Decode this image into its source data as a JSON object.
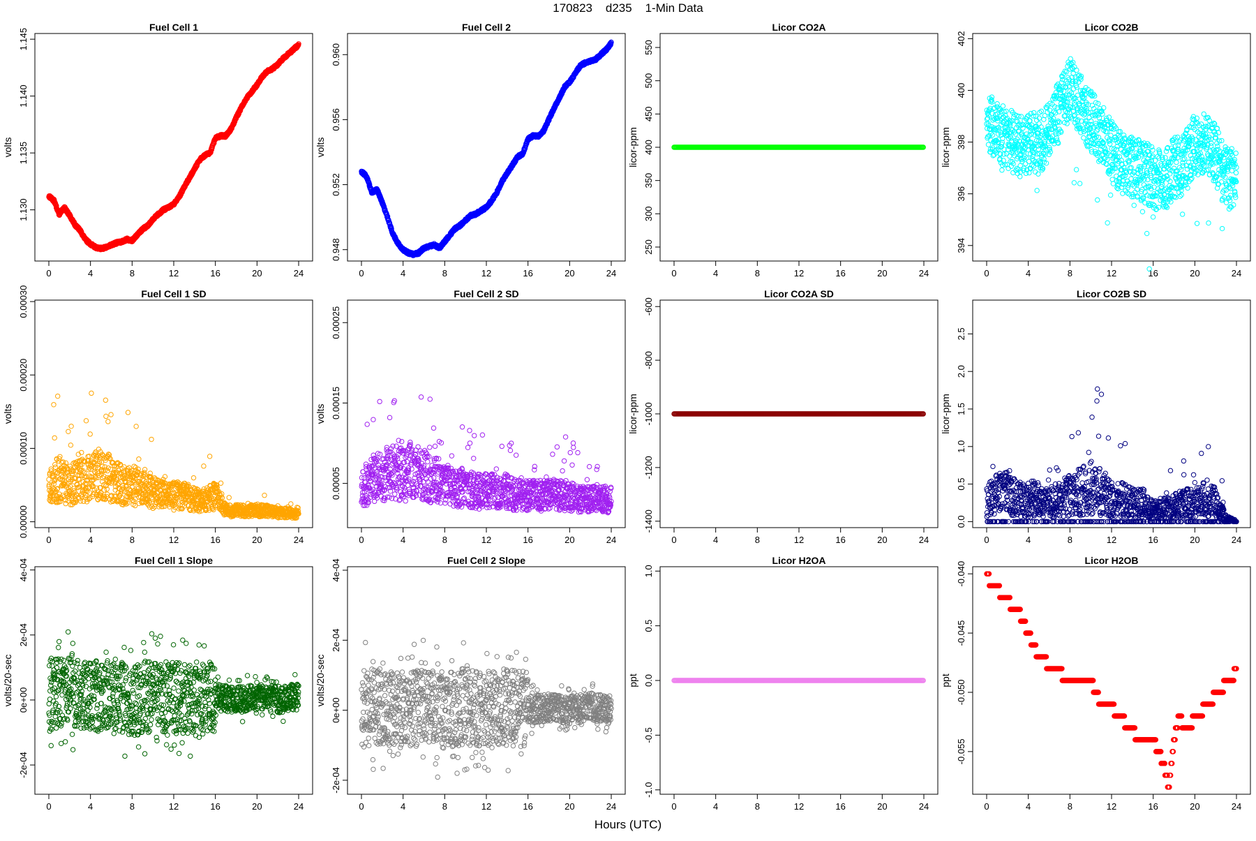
{
  "page": {
    "title": "170823    d235    1-Min Data",
    "xlabel": "Hours (UTC)"
  },
  "chart_data": [
    {
      "type": "scatter",
      "title": "Fuel Cell 1",
      "ylabel": "volts",
      "xlabel": "Hours (UTC)",
      "color": "#ff0000",
      "xlim": [
        0,
        24
      ],
      "ylim": [
        1.1255,
        1.1455
      ],
      "yticks": [
        "1.130",
        "1.135",
        "1.140",
        "1.145"
      ],
      "ytick_values": [
        1.13,
        1.135,
        1.14,
        1.145
      ],
      "xticks": [
        "0",
        "4",
        "8",
        "12",
        "16",
        "20",
        "24"
      ],
      "series": [
        {
          "x": [
            0,
            0.5,
            1,
            1.5,
            2,
            2.5,
            3,
            3.5,
            4,
            4.5,
            5,
            5.5,
            6,
            6.5,
            7,
            7.5,
            8,
            8.5,
            9,
            9.5,
            10,
            10.5,
            11,
            11.5,
            12,
            12.5,
            13,
            13.5,
            14,
            14.5,
            15,
            15.5,
            16,
            16.5,
            17,
            17.5,
            18,
            18.5,
            19,
            19.5,
            20,
            20.5,
            21,
            21.5,
            22,
            22.5,
            23,
            23.5,
            24
          ],
          "y": [
            1.1312,
            1.1308,
            1.1296,
            1.1302,
            1.1295,
            1.1287,
            1.1282,
            1.1274,
            1.127,
            1.1267,
            1.1266,
            1.1267,
            1.1269,
            1.1271,
            1.1272,
            1.1274,
            1.1273,
            1.1278,
            1.1283,
            1.1286,
            1.1292,
            1.1296,
            1.13,
            1.1302,
            1.1305,
            1.1311,
            1.132,
            1.1328,
            1.1336,
            1.1344,
            1.1348,
            1.135,
            1.1363,
            1.1365,
            1.1365,
            1.1371,
            1.1381,
            1.139,
            1.1398,
            1.1404,
            1.141,
            1.1417,
            1.1422,
            1.1424,
            1.1428,
            1.1433,
            1.1437,
            1.1441,
            1.1445
          ]
        }
      ]
    },
    {
      "type": "scatter",
      "title": "Fuel Cell 2",
      "ylabel": "volts",
      "xlabel": "Hours (UTC)",
      "color": "#0000ff",
      "xlim": [
        0,
        24
      ],
      "ylim": [
        0.9473,
        0.9613
      ],
      "yticks": [
        "0.948",
        "0.952",
        "0.956",
        "0.960"
      ],
      "ytick_values": [
        0.948,
        0.952,
        0.956,
        0.96
      ],
      "xticks": [
        "0",
        "4",
        "8",
        "12",
        "16",
        "20",
        "24"
      ],
      "series": [
        {
          "x": [
            0,
            0.5,
            1,
            1.5,
            2,
            2.5,
            3,
            3.5,
            4,
            4.5,
            5,
            5.5,
            6,
            6.5,
            7,
            7.5,
            8,
            8.5,
            9,
            9.5,
            10,
            10.5,
            11,
            11.5,
            12,
            12.5,
            13,
            13.5,
            14,
            14.5,
            15,
            15.5,
            16,
            16.5,
            17,
            17.5,
            18,
            18.5,
            19,
            19.5,
            20,
            20.5,
            21,
            21.5,
            22,
            22.5,
            23,
            23.5,
            24
          ],
          "y": [
            0.9528,
            0.9525,
            0.9515,
            0.9517,
            0.9509,
            0.95,
            0.949,
            0.9484,
            0.948,
            0.9478,
            0.9477,
            0.9478,
            0.9481,
            0.9482,
            0.9483,
            0.9481,
            0.9485,
            0.9489,
            0.9493,
            0.9495,
            0.9498,
            0.9501,
            0.9502,
            0.9504,
            0.9506,
            0.951,
            0.9515,
            0.9522,
            0.9527,
            0.9532,
            0.9537,
            0.9539,
            0.9548,
            0.955,
            0.955,
            0.9553,
            0.956,
            0.9567,
            0.9573,
            0.958,
            0.9583,
            0.9588,
            0.9593,
            0.9595,
            0.9596,
            0.9597,
            0.96,
            0.9603,
            0.9607
          ]
        }
      ]
    },
    {
      "type": "scatter",
      "title": "Licor CO2A",
      "ylabel": "licor-ppm",
      "xlabel": "Hours (UTC)",
      "color": "#00ff00",
      "xlim": [
        0,
        24
      ],
      "ylim": [
        229,
        571
      ],
      "yticks": [
        "250",
        "300",
        "350",
        "400",
        "450",
        "500",
        "550"
      ],
      "ytick_values": [
        250,
        300,
        350,
        400,
        450,
        500,
        550
      ],
      "xticks": [
        "0",
        "4",
        "8",
        "12",
        "16",
        "20",
        "24"
      ],
      "series": [
        {
          "x": [
            0,
            24
          ],
          "y": [
            400,
            400
          ]
        }
      ]
    },
    {
      "type": "scatter",
      "title": "Licor CO2B",
      "ylabel": "licor-ppm",
      "xlabel": "Hours (UTC)",
      "color": "#00ffff",
      "xlim": [
        0,
        24
      ],
      "ylim": [
        393.4,
        402.2
      ],
      "yticks": [
        "394",
        "396",
        "398",
        "400",
        "402"
      ],
      "ytick_values": [
        394,
        396,
        398,
        400,
        402
      ],
      "xticks": [
        "0",
        "4",
        "8",
        "12",
        "16",
        "20",
        "24"
      ],
      "series": [
        {
          "x": [
            0,
            1,
            2,
            3,
            4,
            5,
            6,
            7,
            8,
            9,
            10,
            11,
            12,
            13,
            14,
            15,
            16,
            17,
            18,
            19,
            20,
            21,
            22,
            23,
            24
          ],
          "y": [
            399.0,
            398.4,
            398.2,
            397.8,
            398.0,
            397.9,
            398.4,
            399.2,
            400.1,
            399.5,
            398.8,
            398.3,
            397.6,
            397.2,
            397.0,
            396.9,
            396.6,
            396.5,
            397.0,
            397.1,
            397.9,
            398.0,
            397.5,
            396.6,
            396.5
          ]
        }
      ]
    },
    {
      "type": "scatter",
      "title": "Fuel Cell 1 SD",
      "ylabel": "volts",
      "xlabel": "Hours (UTC)",
      "color": "#ffa500",
      "xlim": [
        0,
        24
      ],
      "ylim": [
        -8e-06,
        0.000302
      ],
      "yticks": [
        "0.00000",
        "0.00010",
        "0.00020",
        "0.00030"
      ],
      "ytick_values": [
        0,
        0.0001,
        0.0002,
        0.0003
      ],
      "xticks": [
        "0",
        "4",
        "8",
        "12",
        "16",
        "20",
        "24"
      ],
      "series": [
        {
          "x": [
            0,
            1,
            2,
            3,
            4,
            5,
            6,
            7,
            8,
            9,
            10,
            11,
            12,
            13,
            14,
            15,
            16,
            17,
            18,
            19,
            20,
            21,
            22,
            23,
            24
          ],
          "y": [
            4.5e-05,
            6e-05,
            5e-05,
            5.5e-05,
            6e-05,
            6.5e-05,
            6e-05,
            5e-05,
            5e-05,
            4.5e-05,
            4e-05,
            3.5e-05,
            3.5e-05,
            3.5e-05,
            3e-05,
            3e-05,
            3.5e-05,
            1.5e-05,
            1.5e-05,
            1.5e-05,
            1.5e-05,
            1.5e-05,
            1.2e-05,
            1.2e-05,
            1e-05
          ]
        }
      ]
    },
    {
      "type": "scatter",
      "title": "Fuel Cell 2 SD",
      "ylabel": "volts",
      "xlabel": "Hours (UTC)",
      "color": "#a020f0",
      "xlim": [
        0,
        24
      ],
      "ylim": [
        -5e-06,
        0.000278
      ],
      "yticks": [
        "0.00005",
        "0.00015",
        "0.00025"
      ],
      "ytick_values": [
        5e-05,
        0.00015,
        0.00025
      ],
      "xticks": [
        "0",
        "4",
        "8",
        "12",
        "16",
        "20",
        "24"
      ],
      "series": [
        {
          "x": [
            0,
            1,
            2,
            3,
            4,
            5,
            6,
            7,
            8,
            9,
            10,
            11,
            12,
            13,
            14,
            15,
            16,
            17,
            18,
            19,
            20,
            21,
            22,
            23,
            24
          ],
          "y": [
            4.5e-05,
            5.5e-05,
            6e-05,
            6.5e-05,
            6e-05,
            6.5e-05,
            6e-05,
            5.5e-05,
            5e-05,
            4.5e-05,
            4.5e-05,
            4e-05,
            4e-05,
            4e-05,
            4e-05,
            3.5e-05,
            3.5e-05,
            3.5e-05,
            3.5e-05,
            3.5e-05,
            3.5e-05,
            3e-05,
            3e-05,
            3e-05,
            3e-05
          ]
        }
      ]
    },
    {
      "type": "scatter",
      "title": "Licor CO2A SD",
      "ylabel": "licor-ppm",
      "xlabel": "Hours (UTC)",
      "color": "#8b0000",
      "xlim": [
        0,
        24
      ],
      "ylim": [
        -1424,
        -576
      ],
      "yticks": [
        "-1400",
        "-1200",
        "-1000",
        "-800",
        "-600"
      ],
      "ytick_values": [
        -1400,
        -1200,
        -1000,
        -800,
        -600
      ],
      "xticks": [
        "0",
        "4",
        "8",
        "12",
        "16",
        "20",
        "24"
      ],
      "series": [
        {
          "x": [
            0,
            24
          ],
          "y": [
            -1000,
            -1000
          ]
        }
      ]
    },
    {
      "type": "scatter",
      "title": "Licor CO2B SD",
      "ylabel": "licor-ppm",
      "xlabel": "Hours (UTC)",
      "color": "#000080",
      "xlim": [
        0,
        24
      ],
      "ylim": [
        -0.08,
        2.95
      ],
      "yticks": [
        "0.0",
        "0.5",
        "1.0",
        "1.5",
        "2.0",
        "2.5"
      ],
      "ytick_values": [
        0,
        0.5,
        1.0,
        1.5,
        2.0,
        2.5
      ],
      "xticks": [
        "0",
        "4",
        "8",
        "12",
        "16",
        "20",
        "24"
      ],
      "series": [
        {
          "x": [
            0,
            1,
            2,
            3,
            4,
            5,
            6,
            7,
            8,
            9,
            10,
            11,
            12,
            13,
            14,
            15,
            16,
            17,
            18,
            19,
            20,
            21,
            22,
            23,
            24
          ],
          "y": [
            0.3,
            0.35,
            0.4,
            0.3,
            0.3,
            0.3,
            0.25,
            0.3,
            0.35,
            0.4,
            0.45,
            0.4,
            0.3,
            0.3,
            0.25,
            0.25,
            0.15,
            0.2,
            0.2,
            0.25,
            0.25,
            0.3,
            0.25,
            0.05,
            0.0
          ]
        }
      ]
    },
    {
      "type": "scatter",
      "title": "Fuel Cell 1 Slope",
      "ylabel": "volts/20-sec",
      "xlabel": "Hours (UTC)",
      "color": "#006400",
      "xlim": [
        0,
        24
      ],
      "ylim": [
        -0.00029,
        0.00041
      ],
      "yticks": [
        "-2e-04",
        "0e+00",
        "2e-04",
        "4e-04"
      ],
      "ytick_values": [
        -0.0002,
        0,
        0.0002,
        0.0004
      ],
      "xticks": [
        "0",
        "4",
        "8",
        "12",
        "16",
        "20",
        "24"
      ],
      "series": [
        {
          "x": [
            0,
            2,
            4,
            6,
            8,
            10,
            12,
            14,
            16,
            18,
            20,
            22,
            24
          ],
          "y": [
            1e-05,
            3e-05,
            1e-05,
            2e-05,
            0.0,
            1e-05,
            1e-05,
            0.0,
            1e-05,
            0.0,
            1e-05,
            0.0,
            1e-05
          ]
        }
      ]
    },
    {
      "type": "scatter",
      "title": "Fuel Cell 2 Slope",
      "ylabel": "volts/20-sec",
      "xlabel": "Hours (UTC)",
      "color": "#808080",
      "xlim": [
        0,
        24
      ],
      "ylim": [
        -0.00024,
        0.00041
      ],
      "yticks": [
        "-2e-04",
        "0e+00",
        "2e-04",
        "4e-04"
      ],
      "ytick_values": [
        -0.0002,
        0,
        0.0002,
        0.0004
      ],
      "xticks": [
        "0",
        "4",
        "8",
        "12",
        "16",
        "20",
        "24"
      ],
      "series": [
        {
          "x": [
            0,
            2,
            4,
            6,
            8,
            10,
            12,
            14,
            16,
            18,
            20,
            22,
            24
          ],
          "y": [
            0.0,
            1e-05,
            0.0,
            1e-05,
            0.0,
            1e-05,
            0.0,
            1e-05,
            0.0,
            1e-05,
            0.0,
            1e-05,
            0.0
          ]
        }
      ]
    },
    {
      "type": "scatter",
      "title": "Licor H2OA",
      "ylabel": "ppt",
      "xlabel": "Hours (UTC)",
      "color": "#ee82ee",
      "xlim": [
        0,
        24
      ],
      "ylim": [
        -1.04,
        1.04
      ],
      "yticks": [
        "-1.0",
        "-0.5",
        "0.0",
        "0.5",
        "1.0"
      ],
      "ytick_values": [
        -1.0,
        -0.5,
        0,
        0.5,
        1.0
      ],
      "xticks": [
        "0",
        "4",
        "8",
        "12",
        "16",
        "20",
        "24"
      ],
      "series": [
        {
          "x": [
            0,
            24
          ],
          "y": [
            0,
            0
          ]
        }
      ]
    },
    {
      "type": "scatter",
      "title": "Licor H2OB",
      "ylabel": "ppt",
      "xlabel": "Hours (UTC)",
      "color": "#ff0000",
      "xlim": [
        0,
        24
      ],
      "ylim": [
        -0.0586,
        -0.0394
      ],
      "yticks": [
        "-0.055",
        "-0.050",
        "-0.045",
        "-0.040"
      ],
      "ytick_values": [
        -0.055,
        -0.05,
        -0.045,
        -0.04
      ],
      "xticks": [
        "0",
        "4",
        "8",
        "12",
        "16",
        "20",
        "24"
      ],
      "series": [
        {
          "x": [
            0,
            0.5,
            1,
            1.5,
            2,
            2.5,
            3,
            3.5,
            4,
            4.5,
            5,
            5.5,
            6,
            6.5,
            7,
            7.5,
            8,
            8.5,
            9,
            9.5,
            10,
            10.5,
            11,
            11.5,
            12,
            12.5,
            13,
            13.5,
            14,
            14.5,
            15,
            15.5,
            16,
            16.5,
            17,
            17.5,
            18,
            18.5,
            19,
            19.5,
            20,
            20.5,
            21,
            21.5,
            22,
            22.5,
            23,
            23.5,
            24
          ],
          "y": [
            -0.04,
            -0.041,
            -0.041,
            -0.042,
            -0.042,
            -0.043,
            -0.043,
            -0.044,
            -0.045,
            -0.046,
            -0.047,
            -0.047,
            -0.048,
            -0.048,
            -0.048,
            -0.049,
            -0.049,
            -0.049,
            -0.049,
            -0.049,
            -0.049,
            -0.05,
            -0.051,
            -0.051,
            -0.051,
            -0.052,
            -0.052,
            -0.053,
            -0.053,
            -0.054,
            -0.054,
            -0.054,
            -0.054,
            -0.055,
            -0.056,
            -0.058,
            -0.054,
            -0.052,
            -0.053,
            -0.053,
            -0.052,
            -0.052,
            -0.051,
            -0.051,
            -0.05,
            -0.05,
            -0.049,
            -0.049,
            -0.048
          ]
        }
      ]
    }
  ]
}
